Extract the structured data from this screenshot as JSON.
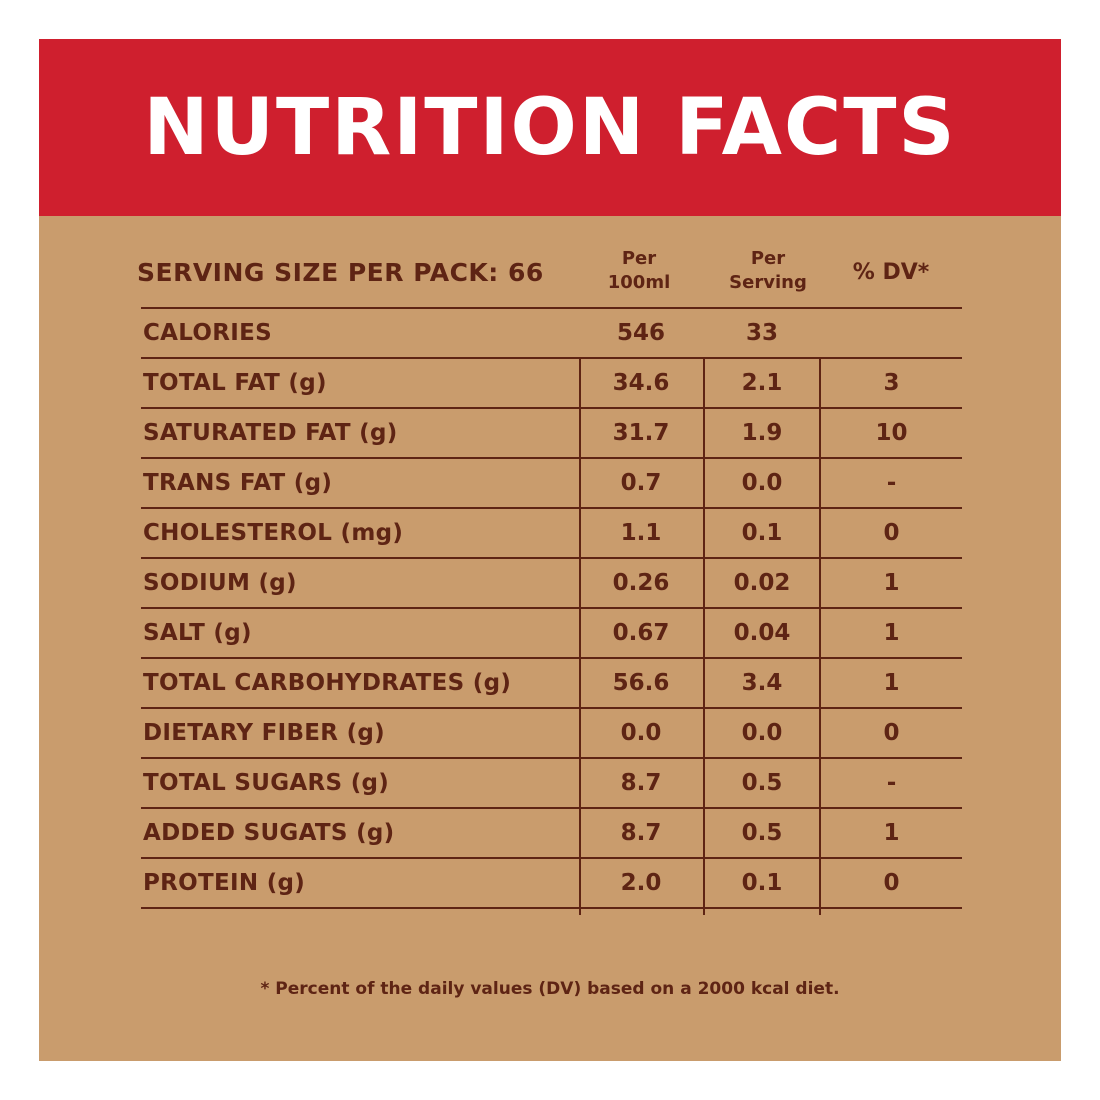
{
  "header": {
    "title": "NUTRITION FACTS"
  },
  "table": {
    "serving_label": "SERVING SIZE PER PACK: 66",
    "col_per100_line1": "Per",
    "col_per100_line2": "100ml",
    "col_perserving_line1": "Per",
    "col_perserving_line2": "Serving",
    "col_dv": "% DV*",
    "rows": [
      {
        "label": "CALORIES",
        "per100": "546",
        "serving": "33",
        "dv": ""
      },
      {
        "label": "TOTAL FAT (g)",
        "per100": "34.6",
        "serving": "2.1",
        "dv": "3"
      },
      {
        "label": "SATURATED FAT (g)",
        "per100": "31.7",
        "serving": "1.9",
        "dv": "10"
      },
      {
        "label": "TRANS FAT (g)",
        "per100": "0.7",
        "serving": "0.0",
        "dv": "-"
      },
      {
        "label": "CHOLESTEROL (mg)",
        "per100": "1.1",
        "serving": "0.1",
        "dv": "0"
      },
      {
        "label": "SODIUM (g)",
        "per100": "0.26",
        "serving": "0.02",
        "dv": "1"
      },
      {
        "label": "SALT (g)",
        "per100": "0.67",
        "serving": "0.04",
        "dv": "1"
      },
      {
        "label": "TOTAL CARBOHYDRATES (g)",
        "per100": "56.6",
        "serving": "3.4",
        "dv": "1"
      },
      {
        "label": "DIETARY FIBER (g)",
        "per100": "0.0",
        "serving": "0.0",
        "dv": "0"
      },
      {
        "label": "TOTAL SUGARS (g)",
        "per100": "8.7",
        "serving": "0.5",
        "dv": "-"
      },
      {
        "label": "ADDED SUGATS (g)",
        "per100": "8.7",
        "serving": "0.5",
        "dv": "1"
      },
      {
        "label": "PROTEIN (g)",
        "per100": "2.0",
        "serving": "0.1",
        "dv": "0"
      }
    ]
  },
  "footnote": "* Percent of the daily values (DV) based on a 2000 kcal diet.",
  "colors": {
    "banner": "#cf1f2e",
    "background": "#c99c6d",
    "text": "#5e2414",
    "title": "#ffffff"
  }
}
